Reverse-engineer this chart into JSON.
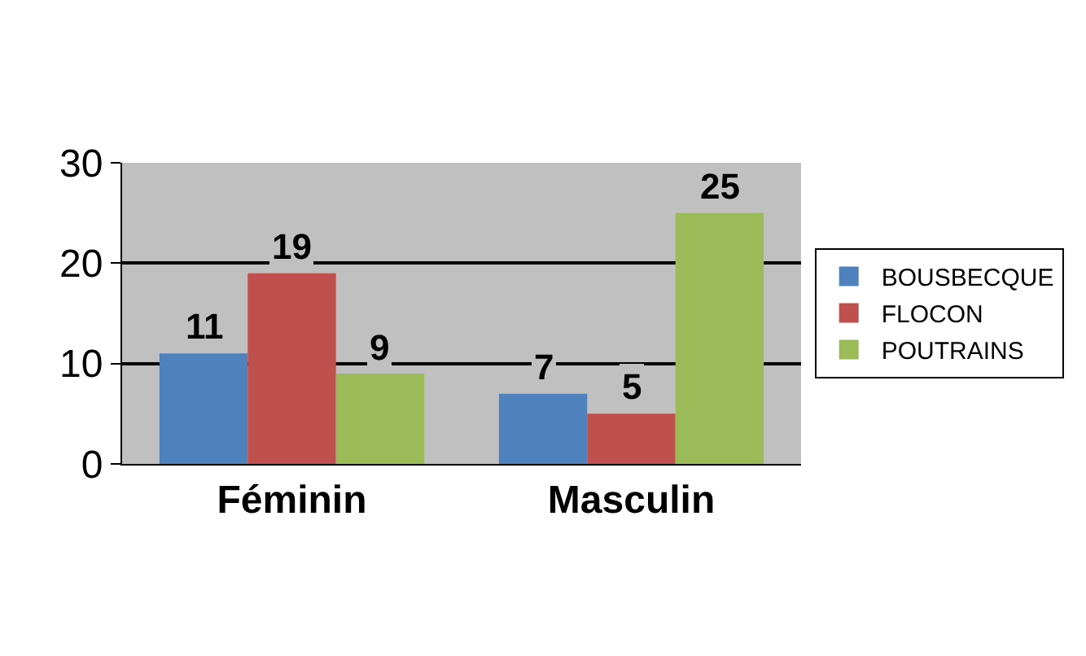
{
  "chart_data": {
    "type": "bar",
    "categories": [
      "Féminin",
      "Masculin"
    ],
    "series": [
      {
        "name": "BOUSBECQUE",
        "color": "#4f81bd",
        "values": [
          11,
          7
        ]
      },
      {
        "name": "FLOCON",
        "color": "#c0504d",
        "values": [
          19,
          5
        ]
      },
      {
        "name": "POUTRAINS",
        "color": "#9bbb59",
        "values": [
          9,
          25
        ]
      }
    ],
    "ylim": [
      0,
      30
    ],
    "yticks": [
      0,
      10,
      20,
      30
    ],
    "grid": "y",
    "legend": "right",
    "data_labels": true
  }
}
